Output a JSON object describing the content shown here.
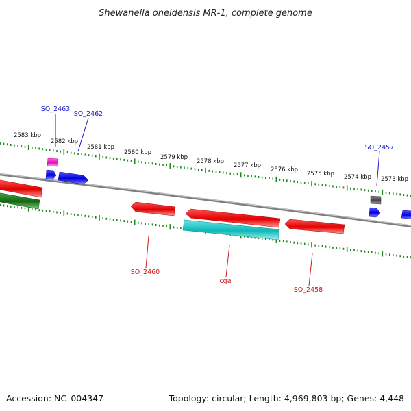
{
  "title": "Shewanella oneidensis MR-1, complete genome",
  "footer": {
    "accession": "Accession: NC_004347",
    "summary": "Topology: circular; Length: 4,969,803 bp; Genes: 4,448"
  },
  "colors": {
    "backbone": "#8c8c8c",
    "ticks": "#1f8a1f",
    "forward_label": "#1a1acc",
    "reverse_label": "#cc1a1a"
  },
  "scale_labels": [
    "2583 kbp",
    "2582 kbp",
    "2581 kbp",
    "2580 kbp",
    "2579 kbp",
    "2578 kbp",
    "2577 kbp",
    "2576 kbp",
    "2575 kbp",
    "2574 kbp",
    "2573 kbp"
  ],
  "gene_labels": {
    "so2463": "SO_2463",
    "so2462": "SO_2462",
    "so2457": "SO_2457",
    "so2460": "SO_2460",
    "cga": "cga",
    "so2458": "SO_2458"
  }
}
